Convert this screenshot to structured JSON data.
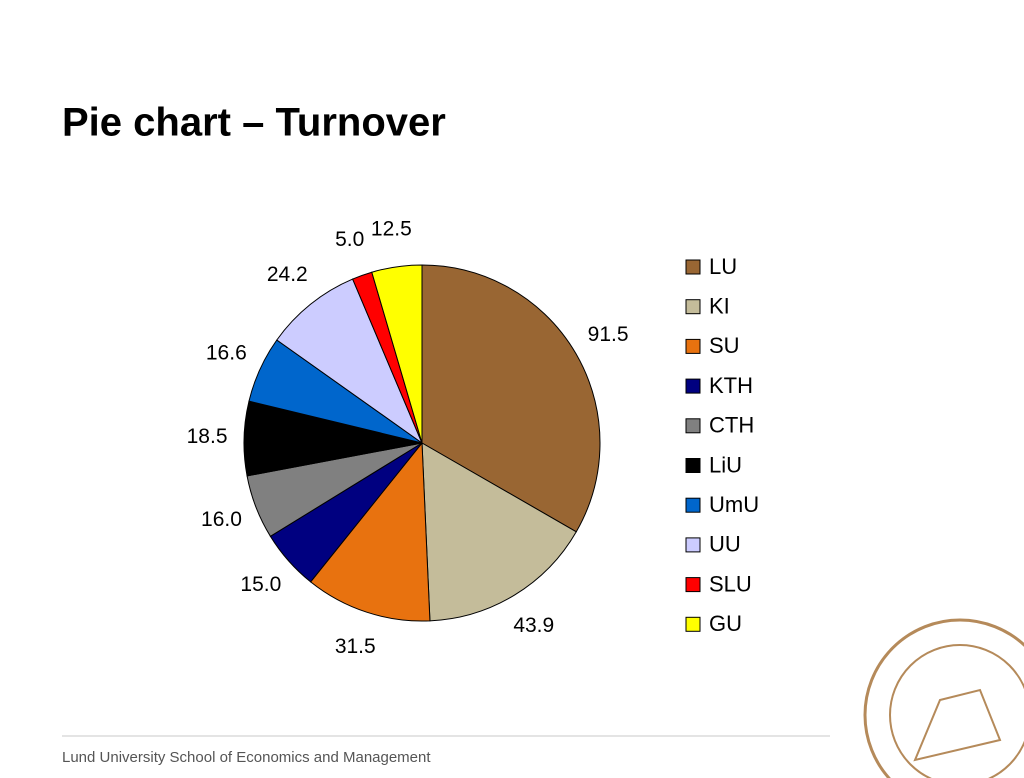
{
  "title": "Pie chart – Turnover",
  "footer": "Lund University School of Economics and Management",
  "chart_data": {
    "type": "pie",
    "categories": [
      "LU",
      "KI",
      "SU",
      "KTH",
      "CTH",
      "LiU",
      "UmU",
      "UU",
      "SLU",
      "GU"
    ],
    "values": [
      91.5,
      43.9,
      31.5,
      15.0,
      16.0,
      18.5,
      16.6,
      24.2,
      5.0,
      12.5
    ],
    "value_labels": [
      "91.5",
      "43.9",
      "31.5",
      "15.0",
      "16.0",
      "18.5",
      "16.6",
      "24.2",
      "5.0",
      "12.5"
    ],
    "colors": [
      "#996633",
      "#c4bc9a",
      "#e8720f",
      "#000080",
      "#808080",
      "#000000",
      "#0066cc",
      "#ccccff",
      "#ff0000",
      "#ffff00"
    ]
  }
}
